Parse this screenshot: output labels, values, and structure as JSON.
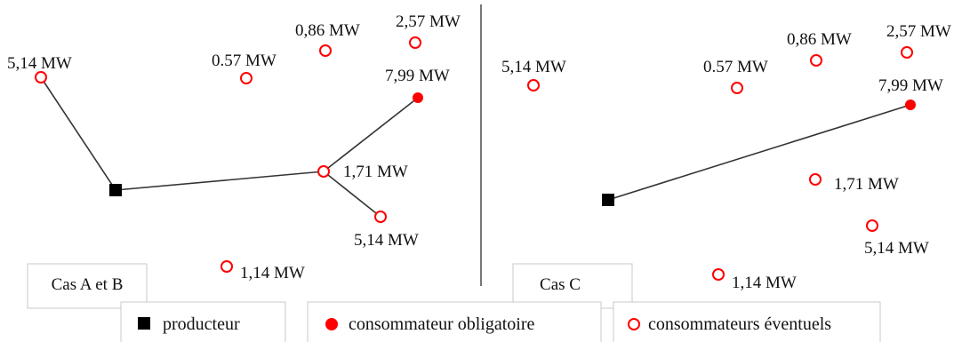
{
  "colors": {
    "producer": "#000000",
    "mandatory": "#ff0000",
    "optional": "#ff0000",
    "line": "#333333",
    "divider": "#777777"
  },
  "panels": [
    {
      "case_label": "Cas A et B",
      "nodes": [
        {
          "id": "p",
          "type": "producer"
        },
        {
          "id": "n1",
          "type": "optional",
          "label": "5,14 MW"
        },
        {
          "id": "n2",
          "type": "optional",
          "label": "0.57 MW"
        },
        {
          "id": "n3",
          "type": "optional",
          "label": "0,86 MW"
        },
        {
          "id": "n4",
          "type": "optional",
          "label": "2,57 MW"
        },
        {
          "id": "n5",
          "type": "mandatory",
          "label": "7,99 MW"
        },
        {
          "id": "n6",
          "type": "optional",
          "label": "1,71 MW"
        },
        {
          "id": "n7",
          "type": "optional",
          "label": "5,14 MW"
        },
        {
          "id": "n8",
          "type": "optional",
          "label": "1,14 MW"
        }
      ],
      "edges": [
        [
          "n1",
          "p"
        ],
        [
          "p",
          "n6"
        ],
        [
          "n6",
          "n5"
        ],
        [
          "n6",
          "n7"
        ]
      ]
    },
    {
      "case_label": "Cas C",
      "nodes": [
        {
          "id": "p",
          "type": "producer"
        },
        {
          "id": "n1",
          "type": "optional",
          "label": "5,14 MW"
        },
        {
          "id": "n2",
          "type": "optional",
          "label": "0.57 MW"
        },
        {
          "id": "n3",
          "type": "optional",
          "label": "0,86 MW"
        },
        {
          "id": "n4",
          "type": "optional",
          "label": "2,57 MW"
        },
        {
          "id": "n5",
          "type": "mandatory",
          "label": "7,99 MW"
        },
        {
          "id": "n6",
          "type": "optional",
          "label": "1,71 MW"
        },
        {
          "id": "n7",
          "type": "optional",
          "label": "5,14 MW"
        },
        {
          "id": "n8",
          "type": "optional",
          "label": "1,14 MW"
        }
      ],
      "edges": [
        [
          "p",
          "n5"
        ]
      ]
    }
  ],
  "legend": {
    "producer": "producteur",
    "mandatory": "consommateur obligatoire",
    "optional": "consommateurs éventuels"
  }
}
